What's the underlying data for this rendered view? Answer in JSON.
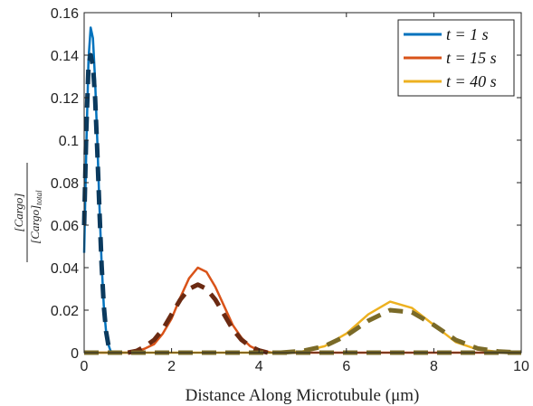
{
  "chart_data": {
    "type": "line",
    "title": "",
    "xlabel": "Distance Along Microtubule (μm)",
    "ylabel_numerator": "[Cargo]",
    "ylabel_denominator": "[Cargo]",
    "ylabel_denominator_sub": "total",
    "xlim": [
      0,
      10
    ],
    "ylim": [
      0,
      0.16
    ],
    "xticks": [
      0,
      2,
      4,
      6,
      8,
      10
    ],
    "yticks": [
      0,
      0.02,
      0.04,
      0.06,
      0.08,
      0.1,
      0.12,
      0.14,
      0.16
    ],
    "ytick_labels": [
      "0",
      "0.02",
      "0.04",
      "0.06",
      "0.08",
      "0.1",
      "0.12",
      "0.14",
      "0.16"
    ],
    "grid": false,
    "legend_position": "top-right",
    "series": [
      {
        "name": "t = 1 s",
        "legend_lhs": "t",
        "legend_rhs": "1 s",
        "style": "solid",
        "color": "#0072BD",
        "x": [
          0.0,
          0.05,
          0.1,
          0.15,
          0.2,
          0.25,
          0.3,
          0.35,
          0.4,
          0.45,
          0.5,
          0.55,
          0.6,
          0.65
        ],
        "y": [
          0.047,
          0.097,
          0.138,
          0.153,
          0.148,
          0.128,
          0.1,
          0.069,
          0.042,
          0.022,
          0.01,
          0.004,
          0.001,
          0.0
        ]
      },
      {
        "name": "t = 15 s",
        "legend_lhs": "t",
        "legend_rhs": "15 s",
        "style": "solid",
        "color": "#D95319",
        "x": [
          0.0,
          1.0,
          1.2,
          1.4,
          1.6,
          1.8,
          2.0,
          2.2,
          2.4,
          2.6,
          2.8,
          3.0,
          3.2,
          3.4,
          3.6,
          3.8,
          4.0,
          4.3,
          10.0
        ],
        "y": [
          0.0,
          0.0,
          0.0005,
          0.002,
          0.004,
          0.009,
          0.016,
          0.026,
          0.035,
          0.04,
          0.038,
          0.031,
          0.022,
          0.013,
          0.007,
          0.003,
          0.001,
          0.0,
          0.0
        ]
      },
      {
        "name": "t = 40 s",
        "legend_lhs": "t",
        "legend_rhs": "40 s",
        "style": "solid",
        "color": "#EDB120",
        "x": [
          0.0,
          4.5,
          5.0,
          5.5,
          6.0,
          6.5,
          7.0,
          7.5,
          8.0,
          8.5,
          9.0,
          9.5,
          10.0
        ],
        "y": [
          0.0,
          0.0,
          0.0006,
          0.003,
          0.009,
          0.018,
          0.024,
          0.021,
          0.013,
          0.005,
          0.0015,
          0.0003,
          0.0
        ]
      },
      {
        "style": "dashed",
        "color": "#0B3A5E",
        "x": [
          0.0,
          0.05,
          0.1,
          0.15,
          0.2,
          0.25,
          0.3,
          0.35,
          0.4,
          0.45,
          0.5,
          0.55,
          0.6
        ],
        "y": [
          0.06,
          0.105,
          0.135,
          0.14,
          0.135,
          0.12,
          0.095,
          0.067,
          0.041,
          0.022,
          0.01,
          0.004,
          0.0
        ]
      },
      {
        "style": "dashed",
        "color": "#6B2A12",
        "x": [
          1.0,
          1.2,
          1.4,
          1.6,
          1.8,
          2.0,
          2.2,
          2.4,
          2.6,
          2.8,
          3.0,
          3.2,
          3.4,
          3.6,
          3.8,
          4.0,
          4.2
        ],
        "y": [
          0.0,
          0.0008,
          0.003,
          0.006,
          0.011,
          0.018,
          0.025,
          0.03,
          0.032,
          0.03,
          0.025,
          0.018,
          0.011,
          0.006,
          0.003,
          0.001,
          0.0
        ]
      },
      {
        "style": "dashed",
        "color": "#7A6A28",
        "x": [
          4.5,
          5.0,
          5.5,
          6.0,
          6.5,
          7.0,
          7.5,
          8.0,
          8.5,
          9.0,
          9.5,
          10.0
        ],
        "y": [
          0.0,
          0.0008,
          0.003,
          0.008,
          0.015,
          0.02,
          0.019,
          0.013,
          0.006,
          0.002,
          0.0005,
          0.0
        ]
      },
      {
        "style": "dashed",
        "color": "#7A6A28",
        "x": [
          0.0,
          10.0
        ],
        "y": [
          0.0,
          0.0
        ]
      }
    ]
  }
}
